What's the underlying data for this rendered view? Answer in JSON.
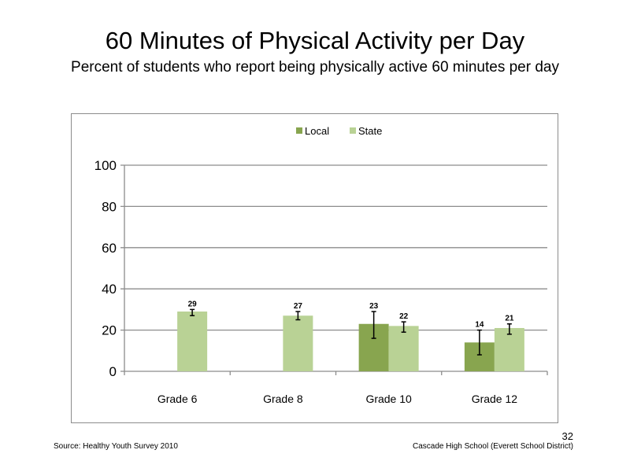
{
  "slide": {
    "title": "60 Minutes of Physical Activity per Day",
    "subtitle": "Percent of students who report being physically active 60 minutes per day",
    "source": "Source: Healthy Youth Survey 2010",
    "school": "Cascade High School (Everett School District)",
    "page_number": "32"
  },
  "chart_data": {
    "type": "bar",
    "categories": [
      "Grade 6",
      "Grade 8",
      "Grade 10",
      "Grade 12"
    ],
    "series": [
      {
        "name": "Local",
        "color": "#88a54f",
        "values": [
          null,
          null,
          23,
          14
        ],
        "error_low": [
          null,
          null,
          16,
          8
        ],
        "error_high": [
          null,
          null,
          29,
          20
        ]
      },
      {
        "name": "State",
        "color": "#b9d295",
        "values": [
          29,
          27,
          22,
          21
        ],
        "error_low": [
          27,
          25,
          19,
          18
        ],
        "error_high": [
          30,
          29,
          24,
          23
        ]
      }
    ],
    "yticks": [
      "0",
      "20",
      "40",
      "60",
      "80",
      "100"
    ],
    "ylim": [
      0,
      100
    ],
    "legend_position": "top",
    "grid": true
  }
}
